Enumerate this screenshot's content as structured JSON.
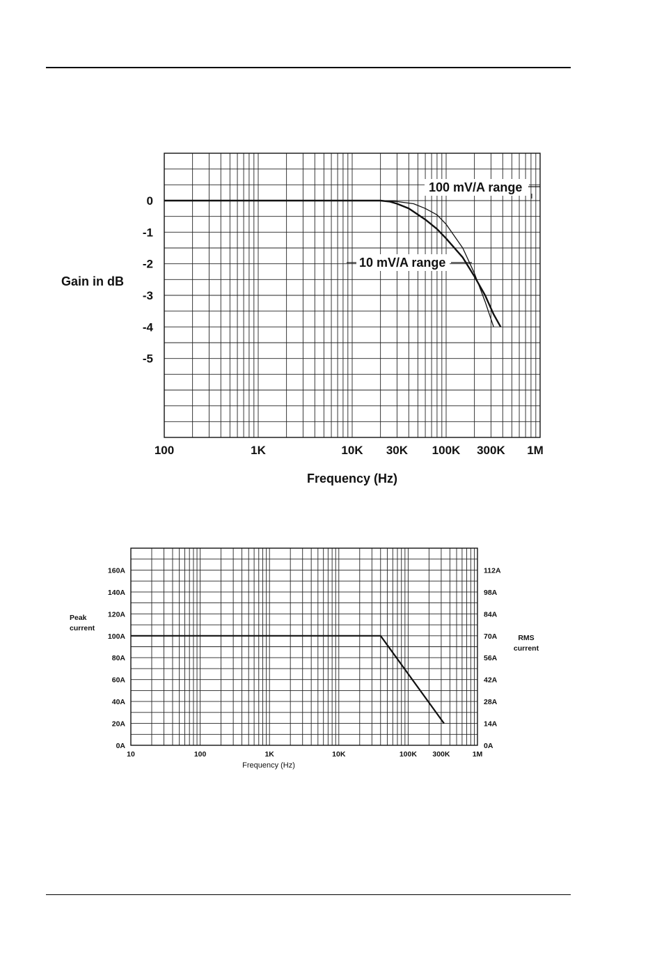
{
  "chart_data": [
    {
      "type": "line",
      "title": "",
      "xlabel": "Frequency (Hz)",
      "ylabel": "Gain in dB",
      "x_scale": "log",
      "xlim": [
        100,
        1000000
      ],
      "ylim": [
        -7.5,
        1.5
      ],
      "x_ticks": [
        {
          "value": 100,
          "label": "100"
        },
        {
          "value": 1000,
          "label": "1K"
        },
        {
          "value": 10000,
          "label": "10K"
        },
        {
          "value": 30000,
          "label": "30K"
        },
        {
          "value": 100000,
          "label": "100K"
        },
        {
          "value": 300000,
          "label": "300K"
        },
        {
          "value": 1000000,
          "label": "1M"
        }
      ],
      "y_ticks": [
        {
          "value": 0,
          "label": "0"
        },
        {
          "value": -1,
          "label": "-1"
        },
        {
          "value": -2,
          "label": "-2"
        },
        {
          "value": -3,
          "label": "-3"
        },
        {
          "value": -4,
          "label": "-4"
        },
        {
          "value": -5,
          "label": "-5"
        }
      ],
      "grid": true,
      "series": [
        {
          "name": "100 mV/A range",
          "x": [
            100,
            1000,
            10000,
            20000,
            30000,
            45000,
            60000,
            80000,
            100000,
            150000,
            200000,
            260000,
            320000
          ],
          "y": [
            0,
            0,
            0,
            0,
            -0.03,
            -0.1,
            -0.25,
            -0.45,
            -0.75,
            -1.5,
            -2.3,
            -3.2,
            -4.0
          ]
        },
        {
          "name": "10 mV/A range",
          "x": [
            100,
            1000,
            10000,
            20000,
            25000,
            30000,
            40000,
            60000,
            80000,
            100000,
            150000,
            200000,
            260000,
            320000,
            380000
          ],
          "y": [
            0,
            0,
            0,
            0,
            -0.03,
            -0.1,
            -0.25,
            -0.6,
            -0.9,
            -1.2,
            -1.8,
            -2.4,
            -3.0,
            -3.6,
            -4.0
          ]
        }
      ],
      "annotations": [
        "100 mV/A range",
        "10 mV/A range"
      ]
    },
    {
      "type": "line",
      "title": "",
      "xlabel": "Frequency (Hz)",
      "ylabel": "Peak current",
      "y2label": "RMS current",
      "x_scale": "log",
      "xlim": [
        10,
        1000000
      ],
      "ylim": [
        0,
        180
      ],
      "x_ticks": [
        {
          "value": 10,
          "label": "10"
        },
        {
          "value": 100,
          "label": "100"
        },
        {
          "value": 1000,
          "label": "1K"
        },
        {
          "value": 10000,
          "label": "10K"
        },
        {
          "value": 100000,
          "label": "100K"
        },
        {
          "value": 300000,
          "label": "300K"
        },
        {
          "value": 1000000,
          "label": "1M"
        }
      ],
      "y_ticks": [
        {
          "value": 0,
          "label": "0A"
        },
        {
          "value": 20,
          "label": "20A"
        },
        {
          "value": 40,
          "label": "40A"
        },
        {
          "value": 60,
          "label": "60A"
        },
        {
          "value": 80,
          "label": "80A"
        },
        {
          "value": 100,
          "label": "100A"
        },
        {
          "value": 120,
          "label": "120A"
        },
        {
          "value": 140,
          "label": "140A"
        },
        {
          "value": 160,
          "label": "160A"
        }
      ],
      "y2_ticks": [
        {
          "value": 0,
          "label": "0A"
        },
        {
          "value": 20,
          "label": "14A"
        },
        {
          "value": 40,
          "label": "28A"
        },
        {
          "value": 60,
          "label": "42A"
        },
        {
          "value": 80,
          "label": "56A"
        },
        {
          "value": 100,
          "label": "70A"
        },
        {
          "value": 120,
          "label": "84A"
        },
        {
          "value": 140,
          "label": "98A"
        },
        {
          "value": 160,
          "label": "112A"
        }
      ],
      "grid": true,
      "series": [
        {
          "x": [
            10,
            40000,
            330000
          ],
          "y": [
            100,
            100,
            20
          ]
        }
      ]
    }
  ]
}
